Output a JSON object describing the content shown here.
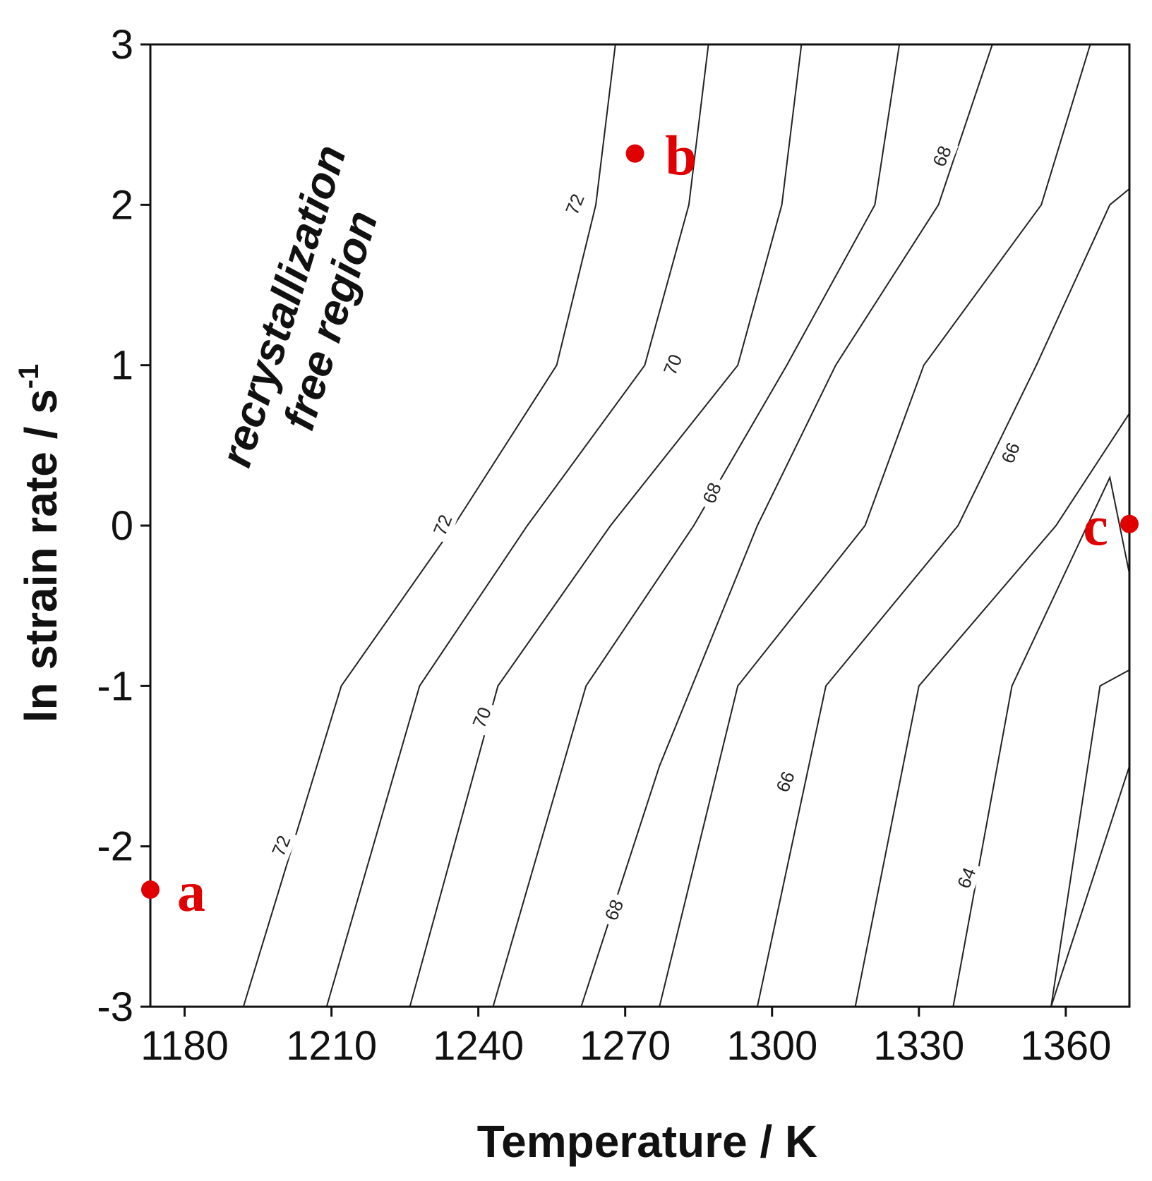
{
  "chart_data": {
    "type": "contour",
    "title": "",
    "xlabel": "Temperature / K",
    "ylabel_main": "ln strain rate / s",
    "ylabel_superscript": "-1",
    "xlim": [
      1173,
      1373
    ],
    "ylim": [
      -3,
      3
    ],
    "x_ticks": [
      1180,
      1210,
      1240,
      1270,
      1300,
      1330,
      1360
    ],
    "y_ticks": [
      -3,
      -2,
      -1,
      0,
      1,
      2,
      3
    ],
    "grid": false,
    "region_annotation": [
      "recrystallization",
      "free region"
    ],
    "contours": [
      {
        "level": null,
        "points": [
          [
            1192,
            -3
          ],
          [
            1212,
            -1
          ],
          [
            1235,
            0
          ],
          [
            1256,
            1
          ],
          [
            1264,
            2
          ],
          [
            1268,
            3
          ]
        ],
        "labels": [
          [
            1200,
            -2
          ],
          [
            1233,
            0
          ],
          [
            1260,
            2
          ]
        ],
        "label_text": "72"
      },
      {
        "level": null,
        "points": [
          [
            1209,
            -3
          ],
          [
            1228,
            -1
          ],
          [
            1250,
            0
          ],
          [
            1274,
            1
          ],
          [
            1283,
            2
          ],
          [
            1287,
            3
          ]
        ],
        "labels": [
          [
            1241,
            -1.2
          ],
          [
            1280,
            1
          ]
        ],
        "label_text": "70"
      },
      {
        "level": null,
        "points": [
          [
            1226,
            -3
          ],
          [
            1244,
            -1
          ],
          [
            1267,
            0
          ],
          [
            1293,
            1
          ],
          [
            1302,
            2
          ],
          [
            1306,
            3
          ]
        ],
        "labels": [],
        "label_text": ""
      },
      {
        "level": null,
        "points": [
          [
            1243,
            -3
          ],
          [
            1262,
            -1
          ],
          [
            1284,
            0
          ],
          [
            1303,
            1
          ],
          [
            1321,
            2
          ],
          [
            1326,
            3
          ]
        ],
        "labels": [
          [
            1268,
            -2.4
          ],
          [
            1288,
            0.2
          ]
        ],
        "label_text": "68"
      },
      {
        "level": null,
        "points": [
          [
            1261,
            -3
          ],
          [
            1277,
            -1.5
          ],
          [
            1297,
            0
          ],
          [
            1313,
            1
          ],
          [
            1334,
            2
          ],
          [
            1345,
            3
          ]
        ],
        "labels": [
          [
            1335,
            2.3
          ]
        ],
        "label_text": "68"
      },
      {
        "level": null,
        "points": [
          [
            1277,
            -3
          ],
          [
            1293,
            -1
          ],
          [
            1319,
            0
          ],
          [
            1331,
            1
          ],
          [
            1355,
            2
          ],
          [
            1365,
            3
          ]
        ],
        "labels": [
          [
            1303,
            -1.6
          ],
          [
            1349,
            0.45
          ]
        ],
        "label_text": "66"
      },
      {
        "level": null,
        "points": [
          [
            1297,
            -3
          ],
          [
            1311,
            -1
          ],
          [
            1338,
            0
          ],
          [
            1354,
            1
          ],
          [
            1369,
            2
          ],
          [
            1373,
            2.1
          ]
        ],
        "labels": [],
        "label_text": ""
      },
      {
        "level": null,
        "points": [
          [
            1317,
            -3
          ],
          [
            1330,
            -1
          ],
          [
            1358,
            0
          ],
          [
            1373,
            0.7
          ]
        ],
        "labels": [],
        "label_text": ""
      },
      {
        "level": null,
        "points": [
          [
            1337,
            -3
          ],
          [
            1349,
            -1
          ],
          [
            1369,
            0.3
          ],
          [
            1373,
            -0.3
          ]
        ],
        "labels": [
          [
            1340,
            -2.2
          ]
        ],
        "label_text": "64"
      },
      {
        "level": null,
        "points": [
          [
            1357,
            -3
          ],
          [
            1367,
            -1
          ],
          [
            1373,
            -0.9
          ]
        ],
        "labels": [],
        "label_text": ""
      },
      {
        "level": null,
        "points": [
          [
            1357,
            -3
          ],
          [
            1373,
            -1.5
          ]
        ],
        "labels": [],
        "label_text": ""
      }
    ],
    "points": [
      {
        "label": "a",
        "x": 1173,
        "y": -2.27
      },
      {
        "label": "b",
        "x": 1272,
        "y": 2.32
      },
      {
        "label": "c",
        "x": 1373,
        "y": 0.01
      }
    ],
    "colors": {
      "axis": "#111111",
      "contour": "#222222",
      "point": "#e00000"
    }
  }
}
